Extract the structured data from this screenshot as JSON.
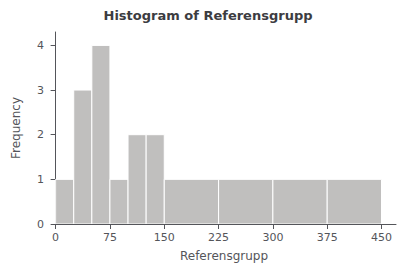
{
  "chart_data": {
    "type": "histogram",
    "title": "Histogram of Referensgrupp",
    "xlabel": "Referensgrupp",
    "ylabel": "Frequency",
    "bins": [
      0,
      25,
      50,
      75,
      100,
      125,
      150,
      225,
      300,
      375,
      450
    ],
    "values": [
      1,
      3,
      4,
      1,
      2,
      2,
      1,
      1,
      1,
      1
    ],
    "color": "#c0bfbe",
    "xlim": [
      -5,
      470
    ],
    "xticks": [
      0,
      75,
      150,
      225,
      300,
      375,
      450
    ],
    "ylim": [
      0,
      4.3
    ],
    "yticks": [
      0,
      1,
      2,
      3,
      4
    ],
    "grid": false
  }
}
